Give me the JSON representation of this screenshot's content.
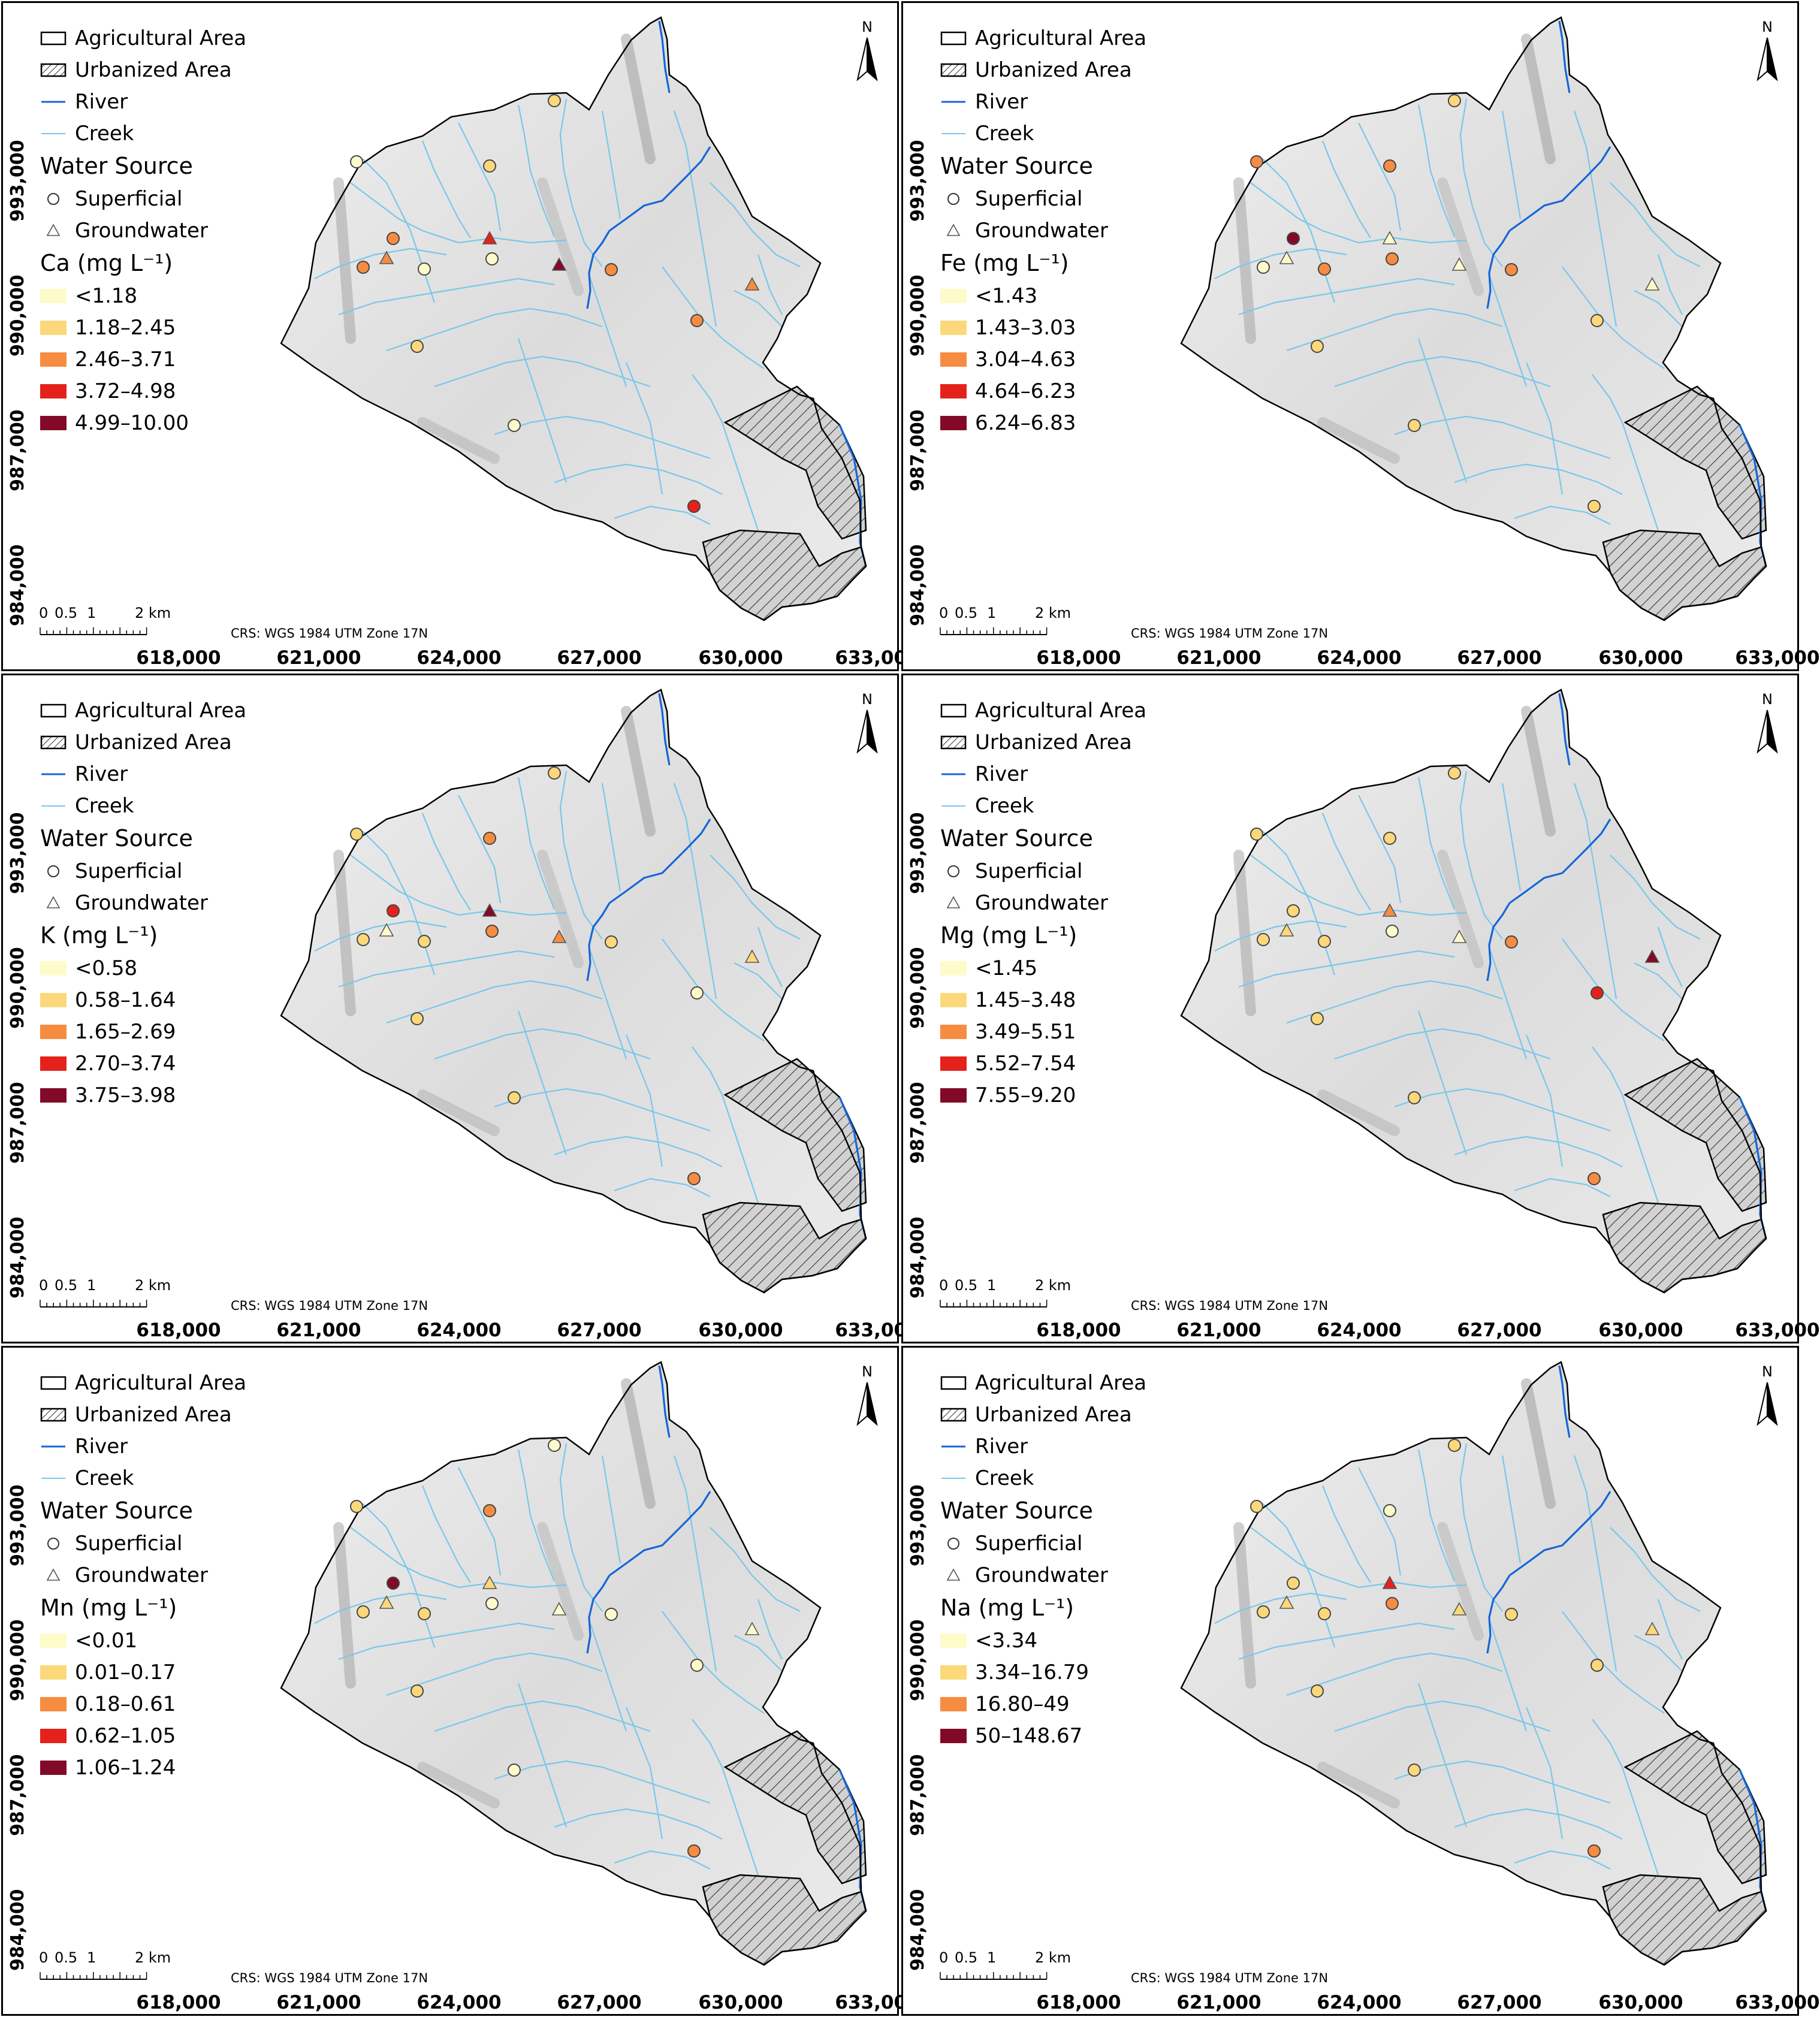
{
  "legend_common": {
    "agricultural_area": "Agricultural Area",
    "urbanized_area": "Urbanized Area",
    "river": "River",
    "creek": "Creek",
    "water_source_title": "Water Source",
    "superficial": "Superficial",
    "groundwater": "Groundwater"
  },
  "north_label": "N",
  "scale": {
    "zero": "0",
    "half": "0.5",
    "one": "1",
    "two_km": "2 km"
  },
  "crs": "CRS: WGS 1984 UTM Zone 17N",
  "y_ticks": [
    "993,000",
    "990,000",
    "987,000",
    "984,000"
  ],
  "x_ticks": [
    "618,000",
    "621,000",
    "624,000",
    "627,000",
    "630,000",
    "633,000"
  ],
  "colors": {
    "c1": "#fefbcb",
    "c2": "#fcd87b",
    "c3": "#f58c42",
    "c4": "#e4221b",
    "c5": "#820a28",
    "river": "#1565d8",
    "creek": "#79c7ea",
    "terrain": "#e4e4e4"
  },
  "panels": [
    {
      "element": "Ca (mg L⁻¹)",
      "classes": [
        "<1.18",
        "1.18–2.45",
        "2.46–3.71",
        "3.72–4.98",
        "4.99–10.00"
      ],
      "sites": [
        {
          "id": "S1",
          "type": "superficial",
          "class": 1
        },
        {
          "id": "S2",
          "type": "superficial",
          "class": 2
        },
        {
          "id": "S3",
          "type": "superficial",
          "class": 2
        },
        {
          "id": "S4",
          "type": "superficial",
          "class": 3
        },
        {
          "id": "S5",
          "type": "superficial",
          "class": 3
        },
        {
          "id": "S6",
          "type": "superficial",
          "class": 1
        },
        {
          "id": "S7",
          "type": "superficial",
          "class": 1
        },
        {
          "id": "S8",
          "type": "superficial",
          "class": 3
        },
        {
          "id": "S9",
          "type": "superficial",
          "class": 3
        },
        {
          "id": "S10",
          "type": "superficial",
          "class": 2
        },
        {
          "id": "S11",
          "type": "superficial",
          "class": 1
        },
        {
          "id": "S12",
          "type": "superficial",
          "class": 4
        },
        {
          "id": "G1",
          "type": "groundwater",
          "class": 3
        },
        {
          "id": "G2",
          "type": "groundwater",
          "class": 4
        },
        {
          "id": "G3",
          "type": "groundwater",
          "class": 5
        },
        {
          "id": "G4",
          "type": "groundwater",
          "class": 3
        }
      ]
    },
    {
      "element": "Fe (mg L⁻¹)",
      "classes": [
        "<1.43",
        "1.43–3.03",
        "3.04–4.63",
        "4.64–6.23",
        "6.24–6.83"
      ],
      "sites": [
        {
          "id": "S1",
          "type": "superficial",
          "class": 3
        },
        {
          "id": "S2",
          "type": "superficial",
          "class": 2
        },
        {
          "id": "S3",
          "type": "superficial",
          "class": 3
        },
        {
          "id": "S4",
          "type": "superficial",
          "class": 5
        },
        {
          "id": "S5",
          "type": "superficial",
          "class": 1
        },
        {
          "id": "S6",
          "type": "superficial",
          "class": 3
        },
        {
          "id": "S7",
          "type": "superficial",
          "class": 3
        },
        {
          "id": "S8",
          "type": "superficial",
          "class": 3
        },
        {
          "id": "S9",
          "type": "superficial",
          "class": 2
        },
        {
          "id": "S10",
          "type": "superficial",
          "class": 2
        },
        {
          "id": "S11",
          "type": "superficial",
          "class": 2
        },
        {
          "id": "S12",
          "type": "superficial",
          "class": 2
        },
        {
          "id": "G1",
          "type": "groundwater",
          "class": 1
        },
        {
          "id": "G2",
          "type": "groundwater",
          "class": 1
        },
        {
          "id": "G3",
          "type": "groundwater",
          "class": 1
        },
        {
          "id": "G4",
          "type": "groundwater",
          "class": 1
        }
      ]
    },
    {
      "element": "K (mg L⁻¹)",
      "classes": [
        "<0.58",
        "0.58–1.64",
        "1.65–2.69",
        "2.70–3.74",
        "3.75–3.98"
      ],
      "sites": [
        {
          "id": "S1",
          "type": "superficial",
          "class": 2
        },
        {
          "id": "S2",
          "type": "superficial",
          "class": 2
        },
        {
          "id": "S3",
          "type": "superficial",
          "class": 3
        },
        {
          "id": "S4",
          "type": "superficial",
          "class": 4
        },
        {
          "id": "S5",
          "type": "superficial",
          "class": 2
        },
        {
          "id": "S6",
          "type": "superficial",
          "class": 2
        },
        {
          "id": "S7",
          "type": "superficial",
          "class": 3
        },
        {
          "id": "S8",
          "type": "superficial",
          "class": 2
        },
        {
          "id": "S9",
          "type": "superficial",
          "class": 1
        },
        {
          "id": "S10",
          "type": "superficial",
          "class": 2
        },
        {
          "id": "S11",
          "type": "superficial",
          "class": 2
        },
        {
          "id": "S12",
          "type": "superficial",
          "class": 3
        },
        {
          "id": "G1",
          "type": "groundwater",
          "class": 1
        },
        {
          "id": "G2",
          "type": "groundwater",
          "class": 5
        },
        {
          "id": "G3",
          "type": "groundwater",
          "class": 3
        },
        {
          "id": "G4",
          "type": "groundwater",
          "class": 2
        }
      ]
    },
    {
      "element": "Mg (mg L⁻¹)",
      "classes": [
        "<1.45",
        "1.45–3.48",
        "3.49–5.51",
        "5.52–7.54",
        "7.55–9.20"
      ],
      "sites": [
        {
          "id": "S1",
          "type": "superficial",
          "class": 2
        },
        {
          "id": "S2",
          "type": "superficial",
          "class": 2
        },
        {
          "id": "S3",
          "type": "superficial",
          "class": 2
        },
        {
          "id": "S4",
          "type": "superficial",
          "class": 2
        },
        {
          "id": "S5",
          "type": "superficial",
          "class": 2
        },
        {
          "id": "S6",
          "type": "superficial",
          "class": 2
        },
        {
          "id": "S7",
          "type": "superficial",
          "class": 1
        },
        {
          "id": "S8",
          "type": "superficial",
          "class": 3
        },
        {
          "id": "S9",
          "type": "superficial",
          "class": 4
        },
        {
          "id": "S10",
          "type": "superficial",
          "class": 2
        },
        {
          "id": "S11",
          "type": "superficial",
          "class": 2
        },
        {
          "id": "S12",
          "type": "superficial",
          "class": 3
        },
        {
          "id": "G1",
          "type": "groundwater",
          "class": 2
        },
        {
          "id": "G2",
          "type": "groundwater",
          "class": 3
        },
        {
          "id": "G3",
          "type": "groundwater",
          "class": 1
        },
        {
          "id": "G4",
          "type": "groundwater",
          "class": 5
        }
      ]
    },
    {
      "element": "Mn (mg L⁻¹)",
      "classes": [
        "<0.01",
        "0.01–0.17",
        "0.18–0.61",
        "0.62–1.05",
        "1.06–1.24"
      ],
      "sites": [
        {
          "id": "S1",
          "type": "superficial",
          "class": 2
        },
        {
          "id": "S2",
          "type": "superficial",
          "class": 1
        },
        {
          "id": "S3",
          "type": "superficial",
          "class": 3
        },
        {
          "id": "S4",
          "type": "superficial",
          "class": 5
        },
        {
          "id": "S5",
          "type": "superficial",
          "class": 2
        },
        {
          "id": "S6",
          "type": "superficial",
          "class": 2
        },
        {
          "id": "S7",
          "type": "superficial",
          "class": 1
        },
        {
          "id": "S8",
          "type": "superficial",
          "class": 1
        },
        {
          "id": "S9",
          "type": "superficial",
          "class": 1
        },
        {
          "id": "S10",
          "type": "superficial",
          "class": 2
        },
        {
          "id": "S11",
          "type": "superficial",
          "class": 1
        },
        {
          "id": "S12",
          "type": "superficial",
          "class": 3
        },
        {
          "id": "G1",
          "type": "groundwater",
          "class": 2
        },
        {
          "id": "G2",
          "type": "groundwater",
          "class": 2
        },
        {
          "id": "G3",
          "type": "groundwater",
          "class": 1
        },
        {
          "id": "G4",
          "type": "groundwater",
          "class": 1
        }
      ]
    },
    {
      "element": "Na (mg L⁻¹)",
      "classes": [
        "<3.34",
        "3.34–16.79",
        "16.80–49",
        "50–148.67"
      ],
      "sites": [
        {
          "id": "S1",
          "type": "superficial",
          "class": 2
        },
        {
          "id": "S2",
          "type": "superficial",
          "class": 2
        },
        {
          "id": "S3",
          "type": "superficial",
          "class": 1
        },
        {
          "id": "S4",
          "type": "superficial",
          "class": 2
        },
        {
          "id": "S5",
          "type": "superficial",
          "class": 2
        },
        {
          "id": "S6",
          "type": "superficial",
          "class": 2
        },
        {
          "id": "S7",
          "type": "superficial",
          "class": 3
        },
        {
          "id": "S8",
          "type": "superficial",
          "class": 2
        },
        {
          "id": "S9",
          "type": "superficial",
          "class": 2
        },
        {
          "id": "S10",
          "type": "superficial",
          "class": 2
        },
        {
          "id": "S11",
          "type": "superficial",
          "class": 2
        },
        {
          "id": "S12",
          "type": "superficial",
          "class": 3
        },
        {
          "id": "G1",
          "type": "groundwater",
          "class": 2
        },
        {
          "id": "G2",
          "type": "groundwater",
          "class": 4
        },
        {
          "id": "G3",
          "type": "groundwater",
          "class": 2
        },
        {
          "id": "G4",
          "type": "groundwater",
          "class": 2
        }
      ]
    }
  ]
}
